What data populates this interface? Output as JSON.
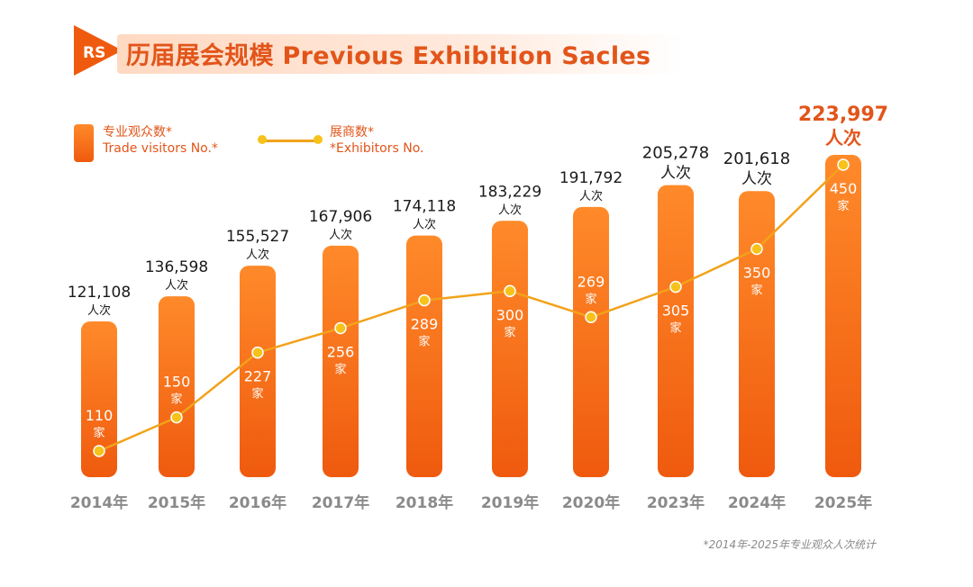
{
  "header": {
    "logo_text": "RS",
    "title": "历届展会规模 Previous Exhibition Sacles"
  },
  "legend": {
    "visitors_cn": "专业观众数*",
    "visitors_en": "Trade visitors No.*",
    "exhibitors_cn": "展商数*",
    "exhibitors_en": "*Exhibitors No."
  },
  "footnote": "*2014年-2025年专业观众人次统计",
  "colors": {
    "accent": "#e2551a",
    "bar_top": "#ff8a2a",
    "bar_bottom": "#ef5a0e",
    "line": "#f2a21a",
    "dot": "#f7c21a"
  },
  "chart_data": {
    "type": "bar+line",
    "title": "历届展会规模 Previous Exhibition Sacles",
    "categories": [
      "2014年",
      "2015年",
      "2016年",
      "2017年",
      "2018年",
      "2019年",
      "2020年",
      "2023年",
      "2024年",
      "2025年"
    ],
    "series": [
      {
        "name": "专业观众数* Trade visitors No.*",
        "type": "bar",
        "values": [
          121108,
          136598,
          155527,
          167906,
          174118,
          183229,
          191792,
          205278,
          201618,
          223997
        ],
        "labels": [
          "121,108",
          "136,598",
          "155,527",
          "167,906",
          "174,118",
          "183,229",
          "191,792",
          "205,278",
          "201,618",
          "223,997"
        ],
        "unit": "人次"
      },
      {
        "name": "展商数* *Exhibitors No.",
        "type": "line",
        "values": [
          110,
          150,
          227,
          256,
          289,
          300,
          269,
          305,
          350,
          450
        ],
        "unit": "家"
      }
    ],
    "highlight_index": 9
  }
}
